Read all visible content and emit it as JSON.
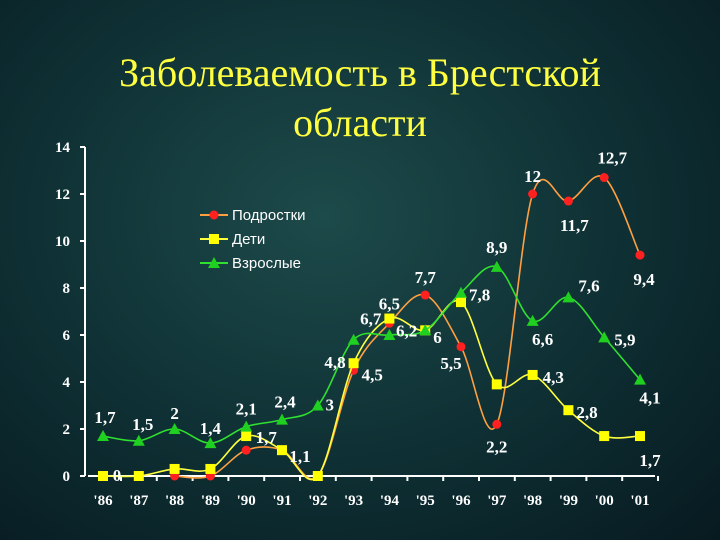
{
  "title": "Заболеваемость в Брестской области",
  "chart_data": {
    "type": "line",
    "title": "Заболеваемость в Брестской области",
    "categories": [
      "'86",
      "'87",
      "'88",
      "'89",
      "'90",
      "'91",
      "'92",
      "'93",
      "'94",
      "'95",
      "'96",
      "'97",
      "'98",
      "'99",
      "'00",
      "'01"
    ],
    "ylim": [
      0,
      14
    ],
    "yticks": [
      "0",
      "2",
      "4",
      "6",
      "8",
      "10",
      "12",
      "14"
    ],
    "legend_position": "top-left",
    "series": [
      {
        "name": "Подростки",
        "color": "#ff2020",
        "line": "#ffa040",
        "marker": "circle",
        "values": [
          null,
          null,
          0,
          0,
          1.1,
          1.1,
          0,
          4.5,
          6.5,
          7.7,
          5.5,
          2.2,
          12,
          11.7,
          12.7,
          9.4
        ]
      },
      {
        "name": "Дети",
        "color": "#ffff00",
        "line": "#ffff40",
        "marker": "square",
        "values": [
          0,
          0,
          0.3,
          0.3,
          1.7,
          1.1,
          0,
          4.8,
          6.7,
          6.2,
          7.4,
          3.9,
          4.3,
          2.8,
          1.7,
          1.7
        ]
      },
      {
        "name": "Взрослые",
        "color": "#20d020",
        "line": "#30e030",
        "marker": "triangle",
        "values": [
          1.7,
          1.5,
          2,
          1.4,
          2.1,
          2.4,
          3,
          5.8,
          6,
          6.2,
          7.8,
          8.9,
          6.6,
          7.6,
          5.9,
          4.1
        ]
      }
    ],
    "data_labels": [
      {
        "text": "1,7",
        "x": 0,
        "y": 1.7
      },
      {
        "text": "1,5",
        "x": 1,
        "y": 1.5
      },
      {
        "text": "2",
        "x": 2,
        "y": 2
      },
      {
        "text": "1,4",
        "x": 3,
        "y": 1.4
      },
      {
        "text": "2,1",
        "x": 4,
        "y": 2.1
      },
      {
        "text": "2,4",
        "x": 5,
        "y": 2.4
      },
      {
        "text": "3",
        "x": 6,
        "y": 3
      },
      {
        "text": "0",
        "x": 0,
        "y": 0
      },
      {
        "text": "1,7",
        "x": 4,
        "y": 1.7
      },
      {
        "text": "1,1",
        "x": 5,
        "y": 1.1
      },
      {
        "text": "4,8",
        "x": 7,
        "y": 4.8
      },
      {
        "text": "4,5",
        "x": 7,
        "y": 4.5
      },
      {
        "text": "6,5",
        "x": 8,
        "y": 6.5
      },
      {
        "text": "6,7",
        "x": 8,
        "y": 6.7
      },
      {
        "text": "6,2",
        "x": 9,
        "y": 6.2
      },
      {
        "text": "6",
        "x": 9,
        "y": 6
      },
      {
        "text": "7,7",
        "x": 9,
        "y": 7.7
      },
      {
        "text": "5,5",
        "x": 10,
        "y": 5.5
      },
      {
        "text": "7,8",
        "x": 10,
        "y": 7.8
      },
      {
        "text": "8,9",
        "x": 11,
        "y": 8.9
      },
      {
        "text": "2,2",
        "x": 11,
        "y": 2.2
      },
      {
        "text": "12",
        "x": 12,
        "y": 12
      },
      {
        "text": "6,6",
        "x": 12,
        "y": 6.6
      },
      {
        "text": "4,3",
        "x": 12,
        "y": 4.3
      },
      {
        "text": "11,7",
        "x": 13,
        "y": 11.7
      },
      {
        "text": "7,6",
        "x": 13,
        "y": 7.6
      },
      {
        "text": "2,8",
        "x": 13,
        "y": 2.8
      },
      {
        "text": "12,7",
        "x": 14,
        "y": 12.7
      },
      {
        "text": "5,9",
        "x": 14,
        "y": 5.9
      },
      {
        "text": "9,4",
        "x": 15,
        "y": 9.4
      },
      {
        "text": "4,1",
        "x": 15,
        "y": 4.1
      },
      {
        "text": "1,7",
        "x": 15,
        "y": 1.7
      }
    ]
  }
}
